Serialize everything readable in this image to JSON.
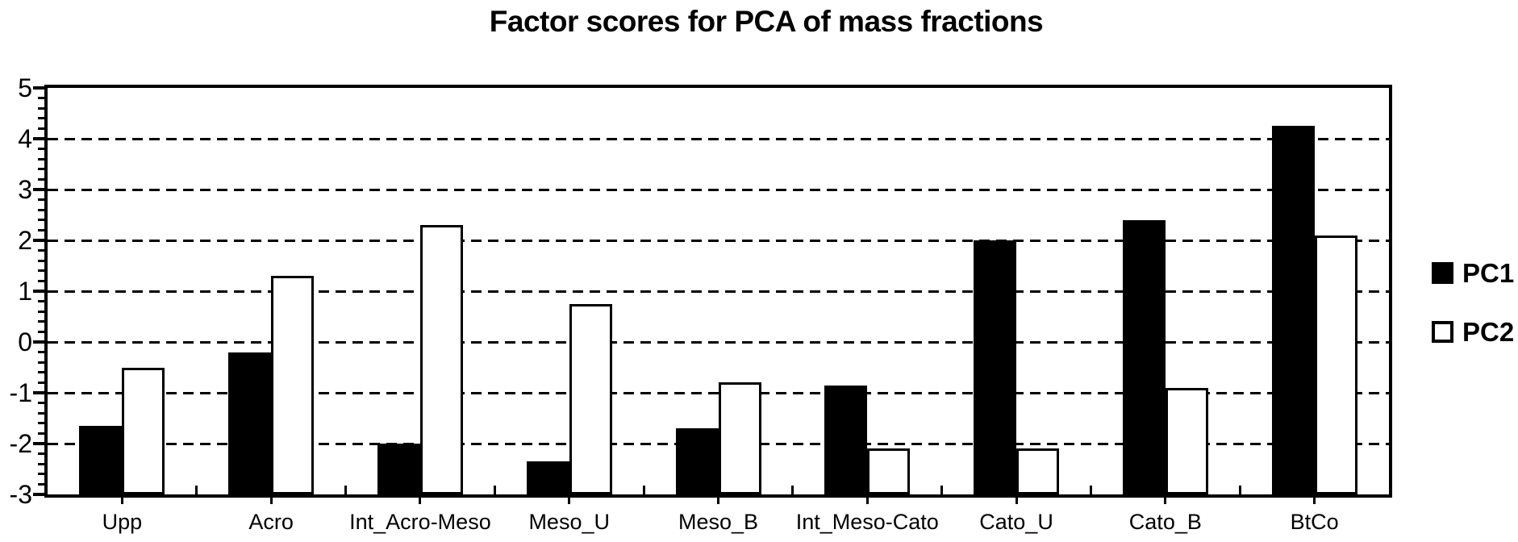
{
  "chart_data": {
    "type": "bar",
    "title": "Factor scores for PCA of mass fractions",
    "categories": [
      "Upp",
      "Acro",
      "Int_Acro-Meso",
      "Meso_U",
      "Meso_B",
      "Int_Meso-Cato",
      "Cato_U",
      "Cato_B",
      "BtCo"
    ],
    "series": [
      {
        "name": "PC1",
        "fill": "#000000",
        "outline": "#000000",
        "values": [
          -1.65,
          -0.2,
          -2.0,
          -2.35,
          -1.7,
          -0.85,
          2.0,
          2.4,
          4.25
        ]
      },
      {
        "name": "PC2",
        "fill": "#ffffff",
        "outline": "#000000",
        "values": [
          -0.5,
          1.3,
          2.3,
          0.75,
          -0.8,
          -2.1,
          -2.1,
          -0.9,
          2.1
        ]
      }
    ],
    "xlabel": "",
    "ylabel": "",
    "ylim": [
      -3,
      5
    ],
    "yticks": [
      5,
      4,
      3,
      2,
      1,
      0,
      -1,
      -2,
      -3
    ],
    "minor_tick_step": 0.2,
    "bar_base": -3,
    "grid": "dashed-horizontal",
    "legend_position": "right",
    "legend_entries": [
      "PC1",
      "PC2"
    ],
    "colors": {
      "foreground": "#000000",
      "background": "#ffffff"
    }
  }
}
